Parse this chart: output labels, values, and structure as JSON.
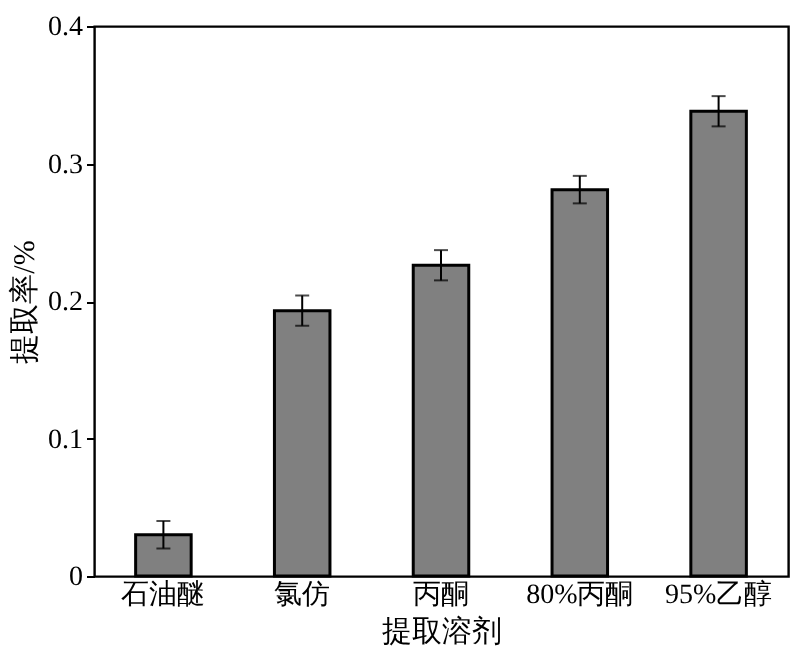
{
  "chart_data": {
    "type": "bar",
    "xlabel": "提取溶剂",
    "ylabel": "提取率/%",
    "categories": [
      "石油醚",
      "氯仿",
      "丙酮",
      "80%丙酮",
      "95%乙醇"
    ],
    "values": [
      0.03,
      0.193,
      0.226,
      0.281,
      0.338
    ],
    "errors": [
      0.01,
      0.011,
      0.011,
      0.01,
      0.011
    ],
    "color": "#808080",
    "ylim": [
      0,
      0.4
    ],
    "yticks": [
      0,
      0.1,
      0.2,
      0.3,
      0.4
    ],
    "grid": false
  }
}
